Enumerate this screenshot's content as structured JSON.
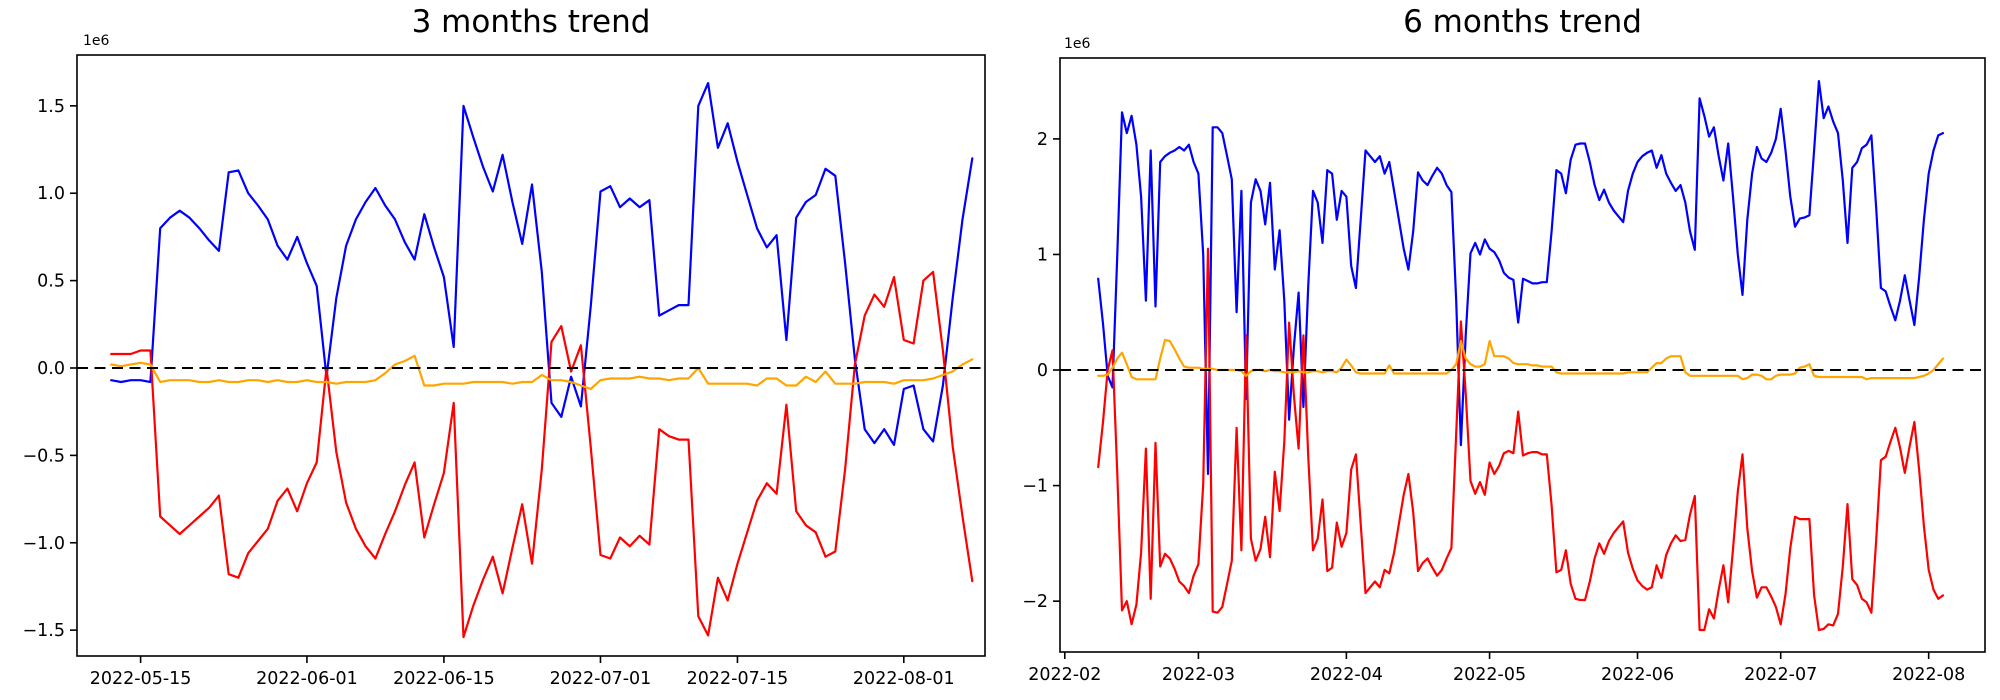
{
  "figure": {
    "background": "#ffffff"
  },
  "chart_data": [
    {
      "type": "line",
      "title": "3 months trend",
      "x_axis": {
        "start_date": "2022-05-12",
        "unit": "days",
        "tick_labels": [
          "2022-05-15",
          "2022-06-01",
          "2022-06-15",
          "2022-07-01",
          "2022-07-15",
          "2022-08-01"
        ],
        "tick_positions_days": [
          3,
          20,
          34,
          50,
          64,
          81
        ]
      },
      "y_axis": {
        "offset_label": "1e6",
        "tick_values": [
          -1.5,
          -1.0,
          -0.5,
          0.0,
          0.5,
          1.0,
          1.5
        ],
        "tick_labels": [
          "−1.5",
          "−1.0",
          "−0.5",
          "0.0",
          "0.5",
          "1.0",
          "1.5"
        ]
      },
      "zero_line": {
        "value": 0,
        "style": "dashed",
        "color": "#000000"
      },
      "grid": false,
      "legend": false,
      "series": [
        {
          "name": "blue",
          "color": "#0000ff",
          "values": [
            -0.07,
            -0.08,
            -0.07,
            -0.07,
            -0.08,
            0.8,
            0.86,
            0.9,
            0.86,
            0.8,
            0.73,
            0.67,
            1.12,
            1.13,
            1.0,
            0.93,
            0.85,
            0.7,
            0.62,
            0.75,
            0.6,
            0.47,
            -0.05,
            0.4,
            0.7,
            0.85,
            0.95,
            1.03,
            0.93,
            0.85,
            0.72,
            0.62,
            0.88,
            0.69,
            0.52,
            0.12,
            1.5,
            1.32,
            1.15,
            1.01,
            1.22,
            0.95,
            0.71,
            1.05,
            0.55,
            -0.2,
            -0.28,
            -0.05,
            -0.22,
            0.35,
            1.01,
            1.04,
            0.92,
            0.97,
            0.92,
            0.96,
            0.3,
            0.33,
            0.36,
            0.36,
            1.5,
            1.63,
            1.26,
            1.4,
            1.18,
            0.99,
            0.8,
            0.69,
            0.76,
            0.16,
            0.86,
            0.95,
            0.99,
            1.14,
            1.1,
            0.6,
            0.05,
            -0.35,
            -0.43,
            -0.35,
            -0.44,
            -0.12,
            -0.1,
            -0.35,
            -0.42,
            -0.1,
            0.4,
            0.85,
            1.2
          ]
        },
        {
          "name": "red",
          "color": "#ff0000",
          "values": [
            0.08,
            0.08,
            0.08,
            0.1,
            0.1,
            -0.85,
            -0.9,
            -0.95,
            -0.9,
            -0.85,
            -0.8,
            -0.73,
            -1.18,
            -1.2,
            -1.06,
            -0.99,
            -0.92,
            -0.76,
            -0.69,
            -0.82,
            -0.66,
            -0.54,
            0.0,
            -0.48,
            -0.77,
            -0.92,
            -1.02,
            -1.09,
            -0.95,
            -0.82,
            -0.67,
            -0.54,
            -0.97,
            -0.78,
            -0.6,
            -0.2,
            -1.54,
            -1.36,
            -1.21,
            -1.08,
            -1.29,
            -1.03,
            -0.78,
            -1.12,
            -0.58,
            0.15,
            0.24,
            -0.02,
            0.13,
            -0.45,
            -1.07,
            -1.09,
            -0.97,
            -1.02,
            -0.96,
            -1.01,
            -0.35,
            -0.39,
            -0.41,
            -0.41,
            -1.42,
            -1.53,
            -1.2,
            -1.33,
            -1.12,
            -0.94,
            -0.76,
            -0.66,
            -0.72,
            -0.21,
            -0.82,
            -0.9,
            -0.94,
            -1.08,
            -1.05,
            -0.58,
            0.02,
            0.3,
            0.42,
            0.35,
            0.52,
            0.16,
            0.14,
            0.5,
            0.55,
            0.1,
            -0.45,
            -0.85,
            -1.22
          ]
        },
        {
          "name": "orange",
          "color": "#ffa500",
          "values": [
            0.02,
            0.01,
            0.02,
            0.03,
            0.02,
            -0.08,
            -0.07,
            -0.07,
            -0.07,
            -0.08,
            -0.08,
            -0.07,
            -0.08,
            -0.08,
            -0.07,
            -0.07,
            -0.08,
            -0.07,
            -0.08,
            -0.08,
            -0.07,
            -0.08,
            -0.08,
            -0.09,
            -0.08,
            -0.08,
            -0.08,
            -0.07,
            -0.03,
            0.02,
            0.04,
            0.07,
            -0.1,
            -0.1,
            -0.09,
            -0.09,
            -0.09,
            -0.08,
            -0.08,
            -0.08,
            -0.08,
            -0.09,
            -0.08,
            -0.08,
            -0.04,
            -0.07,
            -0.07,
            -0.08,
            -0.1,
            -0.12,
            -0.07,
            -0.06,
            -0.06,
            -0.06,
            -0.05,
            -0.06,
            -0.06,
            -0.07,
            -0.06,
            -0.06,
            0.0,
            -0.09,
            -0.09,
            -0.09,
            -0.09,
            -0.09,
            -0.1,
            -0.06,
            -0.06,
            -0.1,
            -0.1,
            -0.05,
            -0.08,
            -0.02,
            -0.09,
            -0.09,
            -0.09,
            -0.08,
            -0.08,
            -0.08,
            -0.09,
            -0.07,
            -0.07,
            -0.07,
            -0.06,
            -0.04,
            -0.02,
            0.02,
            0.05
          ]
        }
      ]
    },
    {
      "type": "line",
      "title": "6 months trend",
      "x_axis": {
        "start_date": "2022-02-08",
        "unit": "days",
        "tick_labels": [
          "2022-02",
          "2022-03",
          "2022-04",
          "2022-05",
          "2022-06",
          "2022-07",
          "2022-08"
        ],
        "tick_positions_days": [
          -7,
          21,
          52,
          82,
          113,
          143,
          174
        ]
      },
      "y_axis": {
        "offset_label": "1e6",
        "tick_values": [
          -2,
          -1,
          0,
          1,
          2
        ],
        "tick_labels": [
          "−2",
          "−1",
          "0",
          "1",
          "2"
        ]
      },
      "zero_line": {
        "value": 0,
        "style": "dashed",
        "color": "#000000"
      },
      "grid": false,
      "legend": false,
      "series": [
        {
          "name": "blue",
          "color": "#0000ff",
          "values": [
            0.79,
            0.4,
            -0.05,
            -0.15,
            1.0,
            2.23,
            2.05,
            2.2,
            1.95,
            1.5,
            0.6,
            1.9,
            0.55,
            1.8,
            1.85,
            1.88,
            1.9,
            1.93,
            1.9,
            1.95,
            1.8,
            1.7,
            1.0,
            -0.9,
            2.1,
            2.1,
            2.05,
            1.85,
            1.65,
            0.5,
            1.55,
            -0.25,
            1.45,
            1.65,
            1.55,
            1.26,
            1.62,
            0.87,
            1.21,
            0.6,
            -0.43,
            0.2,
            0.67,
            -0.32,
            0.72,
            1.55,
            1.45,
            1.1,
            1.73,
            1.7,
            1.3,
            1.55,
            1.5,
            0.9,
            0.71,
            1.3,
            1.9,
            1.85,
            1.8,
            1.85,
            1.7,
            1.8,
            1.55,
            1.3,
            1.05,
            0.87,
            1.2,
            1.71,
            1.64,
            1.6,
            1.68,
            1.75,
            1.7,
            1.6,
            1.54,
            0.6,
            -0.65,
            0.3,
            1.01,
            1.1,
            1.0,
            1.13,
            1.05,
            1.02,
            0.95,
            0.84,
            0.8,
            0.78,
            0.41,
            0.79,
            0.77,
            0.75,
            0.75,
            0.76,
            0.76,
            1.2,
            1.73,
            1.7,
            1.53,
            1.82,
            1.95,
            1.96,
            1.96,
            1.8,
            1.6,
            1.47,
            1.56,
            1.45,
            1.38,
            1.33,
            1.28,
            1.55,
            1.7,
            1.8,
            1.85,
            1.88,
            1.9,
            1.75,
            1.86,
            1.7,
            1.62,
            1.55,
            1.6,
            1.45,
            1.2,
            1.04,
            2.35,
            2.2,
            2.02,
            2.1,
            1.85,
            1.64,
            1.96,
            1.5,
            1.0,
            0.65,
            1.3,
            1.7,
            1.93,
            1.83,
            1.8,
            1.88,
            2.0,
            2.26,
            1.9,
            1.5,
            1.24,
            1.31,
            1.32,
            1.34,
            1.9,
            2.5,
            2.18,
            2.28,
            2.15,
            2.05,
            1.64,
            1.1,
            1.75,
            1.8,
            1.92,
            1.95,
            2.03,
            1.4,
            0.71,
            0.68,
            0.55,
            0.43,
            0.6,
            0.82,
            0.6,
            0.39,
            0.8,
            1.3,
            1.7,
            1.9,
            2.03,
            2.05
          ]
        },
        {
          "name": "red",
          "color": "#ff0000",
          "values": [
            -0.84,
            -0.45,
            0.0,
            0.17,
            -0.9,
            -2.08,
            -2.0,
            -2.2,
            -2.03,
            -1.58,
            -0.68,
            -1.98,
            -0.63,
            -1.7,
            -1.59,
            -1.63,
            -1.72,
            -1.83,
            -1.87,
            -1.93,
            -1.78,
            -1.68,
            -0.99,
            1.05,
            -2.09,
            -2.1,
            -2.05,
            -1.85,
            -1.65,
            -0.5,
            -1.56,
            0.3,
            -1.46,
            -1.65,
            -1.55,
            -1.27,
            -1.62,
            -0.88,
            -1.22,
            -0.62,
            0.41,
            -0.22,
            -0.68,
            0.3,
            -0.74,
            -1.56,
            -1.46,
            -1.12,
            -1.74,
            -1.71,
            -1.32,
            -1.53,
            -1.41,
            -0.86,
            -0.73,
            -1.33,
            -1.93,
            -1.88,
            -1.83,
            -1.88,
            -1.73,
            -1.76,
            -1.58,
            -1.33,
            -1.08,
            -0.9,
            -1.23,
            -1.74,
            -1.67,
            -1.63,
            -1.71,
            -1.78,
            -1.73,
            -1.63,
            -1.54,
            -0.55,
            0.42,
            -0.2,
            -0.96,
            -1.07,
            -0.97,
            -1.08,
            -0.8,
            -0.9,
            -0.83,
            -0.72,
            -0.7,
            -0.72,
            -0.36,
            -0.74,
            -0.72,
            -0.71,
            -0.71,
            -0.73,
            -0.73,
            -1.17,
            -1.75,
            -1.73,
            -1.56,
            -1.85,
            -1.98,
            -1.99,
            -1.99,
            -1.83,
            -1.63,
            -1.5,
            -1.59,
            -1.48,
            -1.41,
            -1.36,
            -1.31,
            -1.58,
            -1.72,
            -1.82,
            -1.87,
            -1.9,
            -1.88,
            -1.69,
            -1.8,
            -1.6,
            -1.5,
            -1.43,
            -1.48,
            -1.47,
            -1.25,
            -1.09,
            -2.25,
            -2.25,
            -2.07,
            -2.15,
            -1.9,
            -1.69,
            -2.01,
            -1.55,
            -1.05,
            -0.73,
            -1.37,
            -1.74,
            -1.97,
            -1.88,
            -1.88,
            -1.96,
            -2.05,
            -2.2,
            -1.94,
            -1.54,
            -1.27,
            -1.29,
            -1.29,
            -1.29,
            -1.95,
            -2.25,
            -2.24,
            -2.2,
            -2.21,
            -2.11,
            -1.7,
            -1.16,
            -1.81,
            -1.86,
            -1.98,
            -2.01,
            -2.1,
            -1.47,
            -0.78,
            -0.75,
            -0.62,
            -0.5,
            -0.67,
            -0.89,
            -0.66,
            -0.45,
            -0.86,
            -1.35,
            -1.73,
            -1.9,
            -1.98,
            -1.95
          ]
        },
        {
          "name": "orange",
          "color": "#ffa500",
          "values": [
            -0.05,
            -0.05,
            -0.04,
            0.02,
            0.1,
            0.15,
            0.05,
            -0.06,
            -0.08,
            -0.08,
            -0.08,
            -0.08,
            -0.08,
            0.1,
            0.26,
            0.25,
            0.18,
            0.1,
            0.03,
            0.02,
            0.02,
            0.02,
            0.01,
            0.01,
            0.01,
            0.0,
            0.0,
            0.0,
            0.0,
            0.0,
            -0.01,
            -0.05,
            -0.01,
            0.0,
            0.0,
            -0.01,
            0.0,
            -0.01,
            -0.01,
            -0.02,
            -0.02,
            -0.02,
            -0.01,
            -0.02,
            -0.02,
            -0.01,
            -0.01,
            -0.02,
            -0.01,
            -0.01,
            -0.02,
            0.02,
            0.09,
            0.04,
            -0.02,
            -0.03,
            -0.03,
            -0.03,
            -0.03,
            -0.03,
            -0.03,
            0.04,
            -0.03,
            -0.03,
            -0.03,
            -0.03,
            -0.03,
            -0.03,
            -0.03,
            -0.03,
            -0.03,
            -0.03,
            -0.03,
            -0.03,
            0.0,
            0.05,
            0.25,
            0.1,
            0.05,
            0.03,
            0.03,
            0.05,
            0.25,
            0.12,
            0.12,
            0.12,
            0.1,
            0.06,
            0.05,
            0.05,
            0.05,
            0.04,
            0.04,
            0.03,
            0.03,
            0.03,
            -0.02,
            -0.03,
            -0.03,
            -0.03,
            -0.03,
            -0.03,
            -0.03,
            -0.03,
            -0.03,
            -0.03,
            -0.03,
            -0.03,
            -0.03,
            -0.03,
            -0.03,
            -0.02,
            -0.02,
            -0.02,
            -0.02,
            -0.02,
            0.02,
            0.06,
            0.06,
            0.1,
            0.12,
            0.12,
            0.12,
            -0.02,
            -0.05,
            -0.05,
            -0.05,
            -0.05,
            -0.05,
            -0.05,
            -0.05,
            -0.05,
            -0.05,
            -0.05,
            -0.05,
            -0.08,
            -0.07,
            -0.04,
            -0.04,
            -0.05,
            -0.08,
            -0.08,
            -0.05,
            -0.04,
            -0.04,
            -0.04,
            -0.03,
            0.02,
            0.03,
            0.05,
            -0.05,
            -0.06,
            -0.06,
            -0.06,
            -0.06,
            -0.06,
            -0.06,
            -0.06,
            -0.06,
            -0.06,
            -0.06,
            -0.08,
            -0.07,
            -0.07,
            -0.07,
            -0.07,
            -0.07,
            -0.07,
            -0.07,
            -0.07,
            -0.07,
            -0.07,
            -0.06,
            -0.05,
            -0.03,
            0.0,
            0.05,
            0.1
          ]
        }
      ]
    }
  ]
}
